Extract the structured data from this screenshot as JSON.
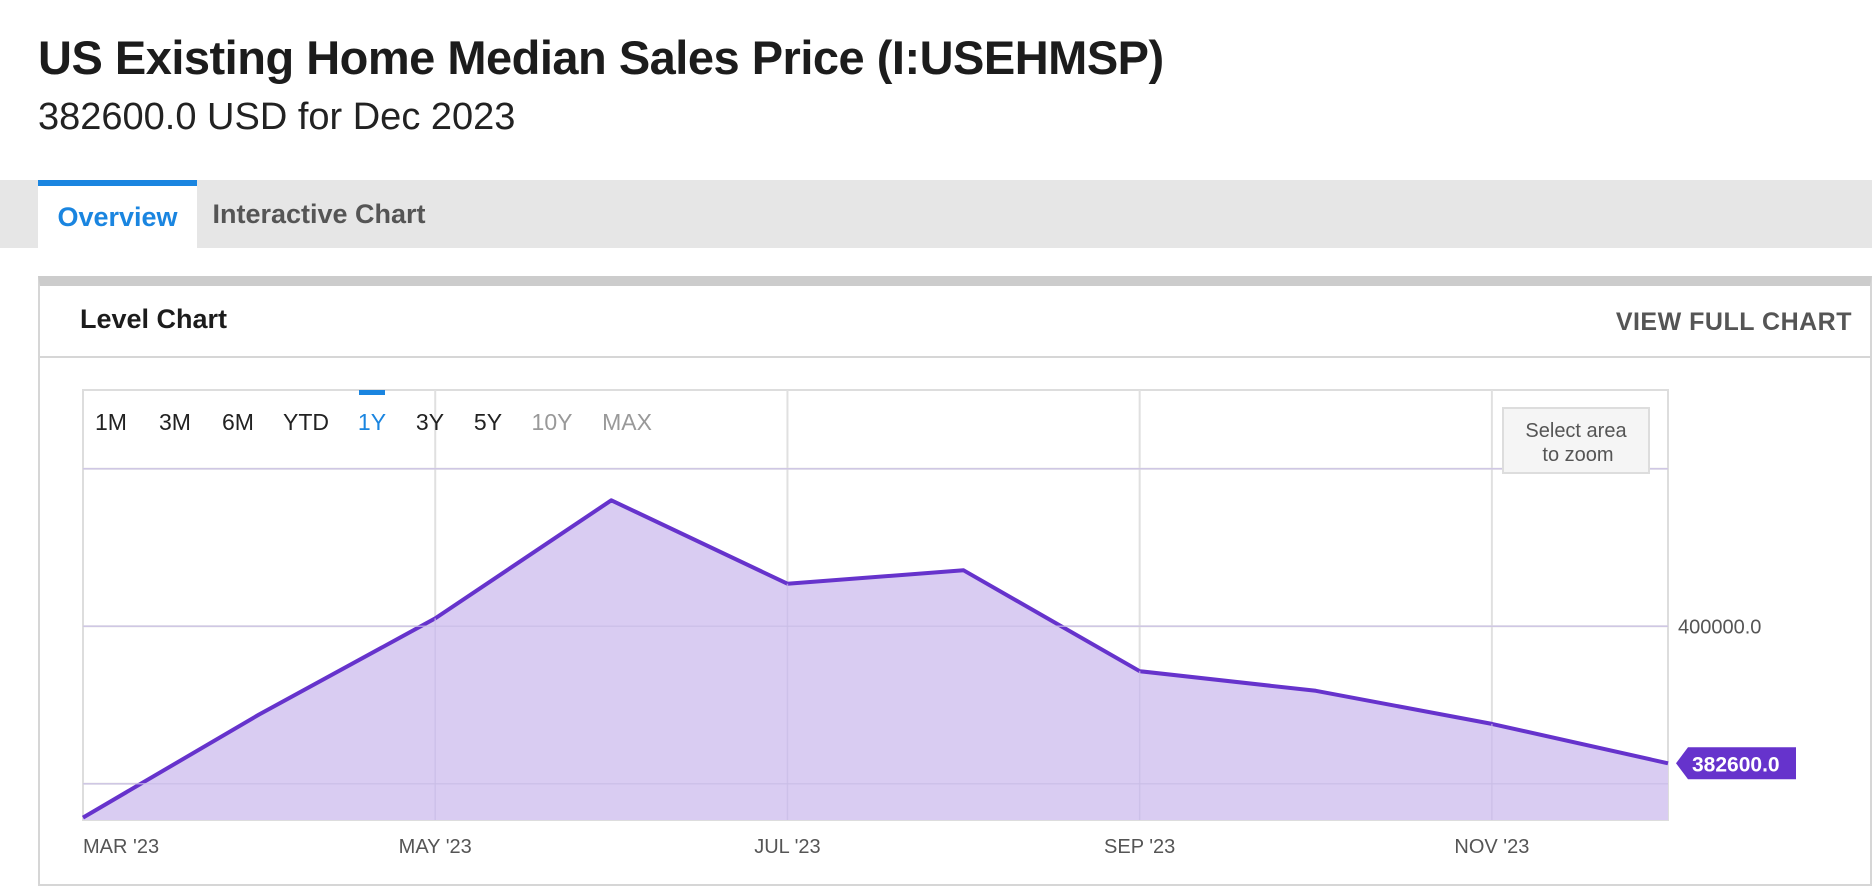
{
  "header": {
    "title": "US Existing Home Median Sales Price (I:USEHMSP)",
    "subtitle": "382600.0 USD for Dec 2023"
  },
  "tabs": [
    {
      "label": "Overview",
      "active": true
    },
    {
      "label": "Interactive Chart",
      "active": false
    }
  ],
  "card": {
    "title": "Level Chart",
    "view_full_label": "VIEW FULL CHART"
  },
  "range_selector": {
    "options": [
      {
        "label": "1M",
        "state": "enabled"
      },
      {
        "label": "3M",
        "state": "enabled"
      },
      {
        "label": "6M",
        "state": "enabled"
      },
      {
        "label": "YTD",
        "state": "enabled"
      },
      {
        "label": "1Y",
        "state": "selected"
      },
      {
        "label": "3Y",
        "state": "enabled"
      },
      {
        "label": "5Y",
        "state": "enabled"
      },
      {
        "label": "10Y",
        "state": "disabled"
      },
      {
        "label": "MAX",
        "state": "disabled"
      }
    ]
  },
  "zoom_hint": {
    "line1": "Select area",
    "line2": "to zoom"
  },
  "colors": {
    "accent": "#1a85e0",
    "series_line": "#6633cc",
    "series_fill": "#d9ccf2",
    "disabled_text": "#999999"
  },
  "chart_data": {
    "type": "area",
    "x": [
      "2023-03",
      "2023-04",
      "2023-05",
      "2023-06",
      "2023-07",
      "2023-08",
      "2023-09",
      "2023-10",
      "2023-11",
      "2023-12"
    ],
    "x_tick_labels": [
      "MAR '23",
      "MAY '23",
      "JUL '23",
      "SEP '23",
      "NOV '23"
    ],
    "x_tick_positions": [
      "2023-03",
      "2023-05",
      "2023-07",
      "2023-09",
      "2023-11"
    ],
    "series": [
      {
        "values": [
          375700,
          388800,
          401000,
          416000,
          405400,
          407100,
          394300,
          391800,
          387600,
          382600
        ]
      }
    ],
    "y_ticks": [
      400000
    ],
    "y_tick_labels": [
      "400000.0"
    ],
    "last_value_label": "382600.0",
    "ylim": [
      375400,
      430000
    ],
    "grid": true
  }
}
